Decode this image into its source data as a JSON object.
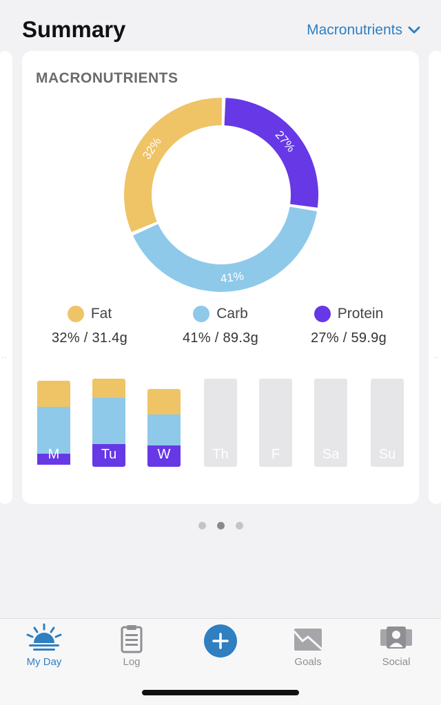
{
  "header": {
    "title": "Summary",
    "view_selector": "Macronutrients"
  },
  "card": {
    "title": "MACRONUTRIENTS"
  },
  "chart_data": {
    "type": "pie",
    "donut": true,
    "slices": [
      {
        "name": "Protein",
        "value": 27,
        "label": "27%",
        "color": "#6638e6"
      },
      {
        "name": "Carb",
        "value": 41,
        "label": "41%",
        "color": "#8ec9ea"
      },
      {
        "name": "Fat",
        "value": 32,
        "label": "32%",
        "color": "#eec466"
      }
    ],
    "legend": [
      {
        "name": "Fat",
        "value": "32% / 31.4g",
        "color": "#eec466"
      },
      {
        "name": "Carb",
        "value": "41% / 89.3g",
        "color": "#8ec9ea"
      },
      {
        "name": "Protein",
        "value": "27% / 59.9g",
        "color": "#6638e6"
      }
    ]
  },
  "week": {
    "days": [
      {
        "label": "M",
        "filled": true,
        "fat": 0.3,
        "carb": 0.53,
        "protein": 0.13,
        "total": 0.98
      },
      {
        "label": "Tu",
        "filled": true,
        "fat": 0.22,
        "carb": 0.54,
        "protein": 0.26,
        "total": 1.0
      },
      {
        "label": "W",
        "filled": true,
        "fat": 0.29,
        "carb": 0.36,
        "protein": 0.25,
        "total": 0.88
      },
      {
        "label": "Th",
        "filled": false
      },
      {
        "label": "F",
        "filled": false
      },
      {
        "label": "Sa",
        "filled": false
      },
      {
        "label": "Su",
        "filled": false
      }
    ]
  },
  "pager": {
    "count": 3,
    "active": 1
  },
  "tabs": [
    {
      "label": "My Day",
      "icon": "sunrise-icon",
      "active": true
    },
    {
      "label": "Log",
      "icon": "clipboard-icon",
      "active": false
    },
    {
      "label": "Goals",
      "icon": "chart-envelope-icon",
      "active": false
    },
    {
      "label": "Social",
      "icon": "people-icon",
      "active": false
    }
  ],
  "colors": {
    "accent": "#2f7fc1",
    "fat": "#eec466",
    "carb": "#8ec9ea",
    "protein": "#6638e6",
    "empty": "#e6e6e8"
  }
}
